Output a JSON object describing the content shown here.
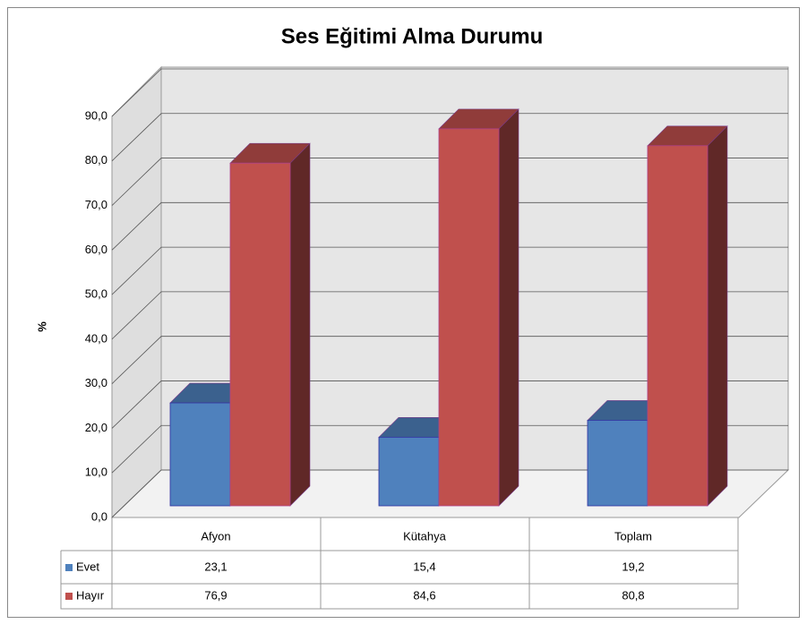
{
  "chart_data": {
    "type": "bar3d",
    "title": "Ses Eğitimi Alma Durumu",
    "y_label": "%",
    "categories": [
      "Afyon",
      "Kütahya",
      "Toplam"
    ],
    "series": [
      {
        "name": "Evet",
        "color": "#4f81bd",
        "values": [
          23.1,
          15.4,
          19.2
        ],
        "value_labels": [
          "23,1",
          "15,4",
          "19,2"
        ]
      },
      {
        "name": "Hayır",
        "color": "#c0504d",
        "values": [
          76.9,
          84.6,
          80.8
        ],
        "value_labels": [
          "76,9",
          "84,6",
          "80,8"
        ]
      }
    ],
    "ylim": [
      0,
      90
    ],
    "yticks": [
      {
        "value": 0,
        "label": "0,0"
      },
      {
        "value": 10,
        "label": "10,0"
      },
      {
        "value": 20,
        "label": "20,0"
      },
      {
        "value": 30,
        "label": "30,0"
      },
      {
        "value": 40,
        "label": "40,0"
      },
      {
        "value": 50,
        "label": "50,0"
      },
      {
        "value": 60,
        "label": "60,0"
      },
      {
        "value": 70,
        "label": "70,0"
      },
      {
        "value": 80,
        "label": "80,0"
      },
      {
        "value": 90,
        "label": "90,0"
      }
    ],
    "grid": true
  }
}
